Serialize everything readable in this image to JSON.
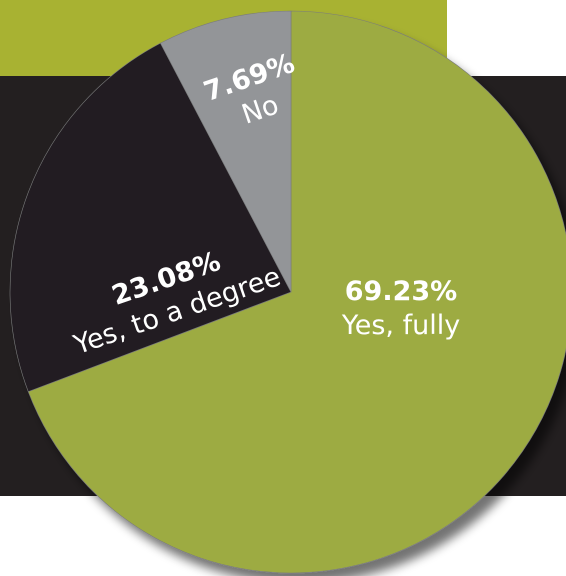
{
  "chart_data": {
    "type": "pie",
    "slices": [
      {
        "label": "Yes, fully",
        "value": 69.23,
        "value_label": "69.23%",
        "color": "#9dab42"
      },
      {
        "label": "Yes, to a degree",
        "value": 23.08,
        "value_label": "23.08%",
        "color": "#231f20"
      },
      {
        "label": "No",
        "value": 7.69,
        "value_label": "7.69%",
        "color": "#939598"
      }
    ],
    "title": "",
    "legend": "none",
    "start": "top",
    "direction": "clockwise"
  },
  "colors": {
    "accent_green": "#a8b232",
    "dark": "#231f20"
  }
}
